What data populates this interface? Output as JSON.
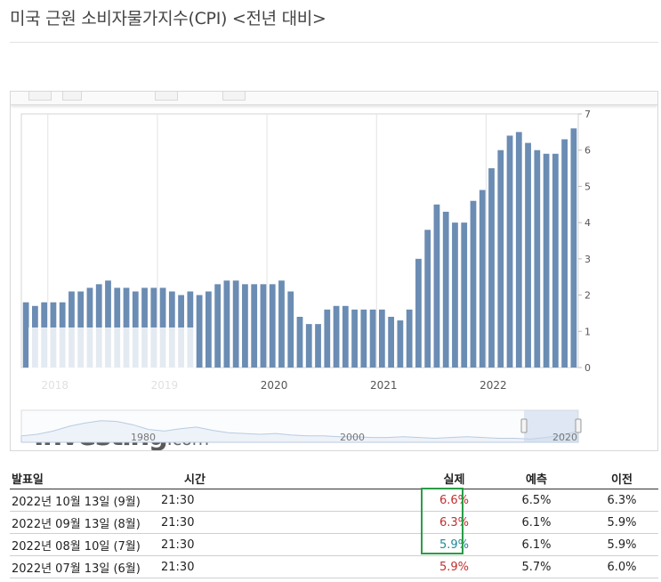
{
  "page_title": "미국 근원 소비자물가지수(CPI) <전년 대비>",
  "chart_data": {
    "type": "bar",
    "title": "",
    "bar_color": "#6b8cb3",
    "y_axis_side": "right",
    "ylim": [
      0,
      7
    ],
    "y_ticks": [
      0,
      1,
      2,
      3,
      4,
      5,
      6,
      7
    ],
    "grid": "vertical lines at year boundaries",
    "x_tick_labels": [
      "2018",
      "2019",
      "2020",
      "2021",
      "2022"
    ],
    "values": [
      1.8,
      1.7,
      1.8,
      1.8,
      1.8,
      2.1,
      2.1,
      2.2,
      2.3,
      2.4,
      2.2,
      2.2,
      2.1,
      2.2,
      2.2,
      2.2,
      2.1,
      2.0,
      2.1,
      2.0,
      2.1,
      2.3,
      2.4,
      2.4,
      2.3,
      2.3,
      2.3,
      2.3,
      2.4,
      2.1,
      1.4,
      1.2,
      1.2,
      1.6,
      1.7,
      1.7,
      1.6,
      1.6,
      1.6,
      1.6,
      1.4,
      1.3,
      1.6,
      3.0,
      3.8,
      4.5,
      4.3,
      4.0,
      4.0,
      4.6,
      4.9,
      5.5,
      6.0,
      6.4,
      6.5,
      6.2,
      6.0,
      5.9,
      5.9,
      6.3,
      6.6
    ],
    "navigator": {
      "tick_labels": [
        "1980",
        "2000",
        "2020"
      ]
    }
  },
  "watermark": {
    "brand": "Investing",
    "suffix": ".com"
  },
  "table": {
    "headers": {
      "date": "발표일",
      "time": "시간",
      "actual": "실제",
      "forecast": "예측",
      "previous": "이전"
    },
    "rows": [
      {
        "date": "2022년 10월 13일 (9월)",
        "time": "21:30",
        "actual": "6.6%",
        "forecast": "6.5%",
        "previous": "6.3%",
        "actual_color": "red"
      },
      {
        "date": "2022년 09월 13일 (8월)",
        "time": "21:30",
        "actual": "6.3%",
        "forecast": "6.1%",
        "previous": "5.9%",
        "actual_color": "red"
      },
      {
        "date": "2022년 08월 10일 (7월)",
        "time": "21:30",
        "actual": "5.9%",
        "forecast": "6.1%",
        "previous": "5.9%",
        "actual_color": "teal"
      },
      {
        "date": "2022년 07월 13일 (6월)",
        "time": "21:30",
        "actual": "5.9%",
        "forecast": "5.7%",
        "previous": "6.0%",
        "actual_color": "red"
      }
    ],
    "highlight_color": "#2a9d47"
  }
}
